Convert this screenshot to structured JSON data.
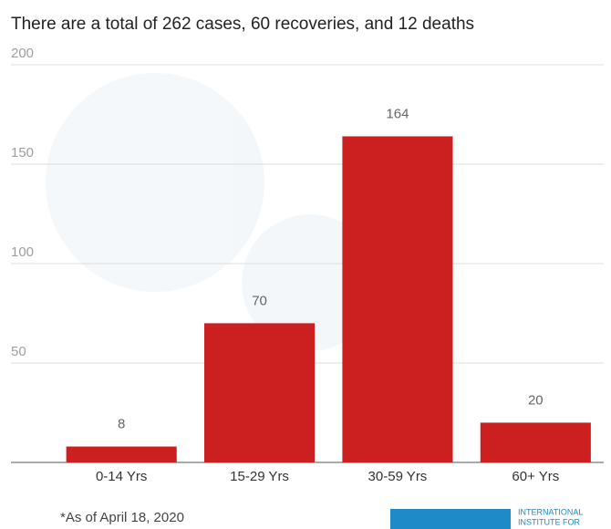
{
  "chart_data": {
    "type": "bar",
    "subtitle": "There are a total of 262 cases, 60 recoveries, and 12 deaths",
    "categories": [
      "0-14 Yrs",
      "15-29 Yrs",
      "30-59 Yrs",
      "60+ Yrs"
    ],
    "values": [
      8,
      70,
      164,
      20
    ],
    "color": "#cc1f1f",
    "ylim": [
      0,
      200
    ],
    "yticks": [
      50,
      100,
      150,
      200
    ],
    "grid": true,
    "note": "*As of April 18, 2020",
    "logo": {
      "line1": "INTERNATIONAL",
      "line2": "INSTITUTE FOR"
    }
  }
}
